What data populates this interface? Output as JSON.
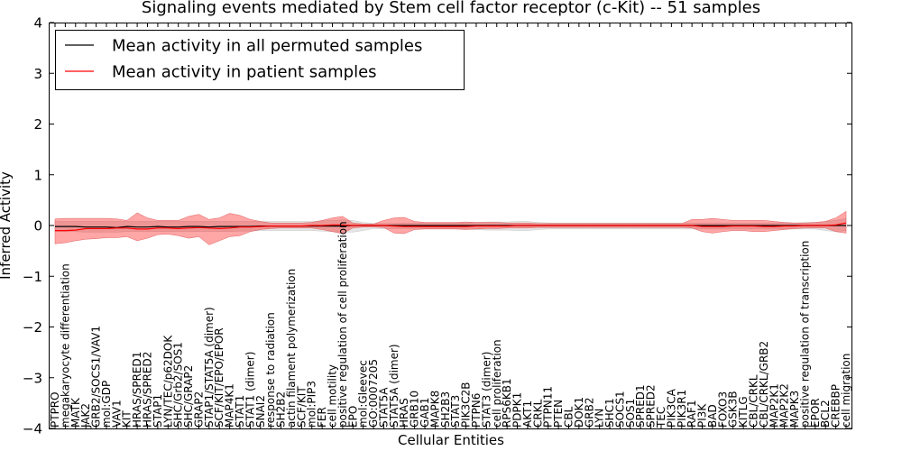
{
  "chart_data": {
    "type": "line",
    "title": "Signaling events mediated by Stem cell factor receptor (c-Kit) -- 51 samples",
    "xlabel": "Cellular Entities",
    "ylabel": "Inferred Activity",
    "ylim": [
      -4,
      4
    ],
    "yticks": [
      -4,
      -3,
      -2,
      -1,
      0,
      1,
      2,
      3,
      4
    ],
    "ytick_labels": [
      "−4",
      "−3",
      "−2",
      "−1",
      "0",
      "1",
      "2",
      "3",
      "4"
    ],
    "legend_position": "top-left",
    "categories": [
      "PTPRO",
      "megakaryocyte differentiation",
      "MATK",
      "JAK2",
      "GRB2/SOCS1/VAV1",
      "mol:GDP",
      "VAV1",
      "KIT",
      "HRAS/SPRED1",
      "HRAS/SPRED2",
      "STAP1",
      "LYN/TEC/p62DOK",
      "SHC/Grb2/SOS1",
      "SHC/GRAP2",
      "GRAP2",
      "STAP1/STAT5A (dimer)",
      "SCF/KIT/EPO/EPOR",
      "MAP4K1",
      "STAT1",
      "STAT1 (dimer)",
      "SNAI2",
      "response to radiation",
      "SH2B2",
      "actin filament polymerization",
      "SCF/KIT",
      "mol:PIP3",
      "FER",
      "cell motility",
      "positive regulation of cell proliferation",
      "EPO",
      "mol:Gleevec",
      "GO:0007205",
      "STAT5A",
      "STAT5A (dimer)",
      "HRAS",
      "GRB10",
      "GAB1",
      "MAPK8",
      "SH2B3",
      "STAT3",
      "PIK3C2B",
      "PTPN6",
      "STAT3 (dimer)",
      "cell proliferation",
      "RPS6KB1",
      "PDPK1",
      "AKT1",
      "CRKL",
      "PTPN11",
      "PTEN",
      "CBL",
      "DOK1",
      "GRB2",
      "LYN",
      "SHC1",
      "SOCS1",
      "SOS1",
      "SPRED1",
      "SPRED2",
      "TEC",
      "PIK3CA",
      "PIK3R1",
      "RAF1",
      "PI3K",
      "BAD",
      "FOXO3",
      "GSK3B",
      "KITLG",
      "CBL/CRKL",
      "CBL/CRKL/GRB2",
      "MAP2K1",
      "MAP2K2",
      "MAPK3",
      "positive regulation of transcription",
      "EPOR",
      "BCL2",
      "CREBBP",
      "cell migration"
    ],
    "series": [
      {
        "name": "Mean activity in all permuted samples",
        "color": "#000000",
        "values": [
          -0.02,
          -0.02,
          -0.02,
          -0.03,
          -0.03,
          -0.03,
          -0.04,
          -0.02,
          -0.03,
          -0.03,
          -0.02,
          -0.03,
          -0.03,
          -0.02,
          -0.02,
          -0.03,
          -0.02,
          -0.02,
          -0.02,
          -0.02,
          -0.01,
          -0.01,
          -0.01,
          -0.01,
          -0.01,
          -0.01,
          -0.01,
          -0.01,
          -0.01,
          0.0,
          0.0,
          0.0,
          0.0,
          0.0,
          0.0,
          0.0,
          0.0,
          0.0,
          0.0,
          0.0,
          0.0,
          0.0,
          0.0,
          0.0,
          0.0,
          0.0,
          0.0,
          0.0,
          0.0,
          0.0,
          0.0,
          0.0,
          0.0,
          0.0,
          0.0,
          0.0,
          0.0,
          0.0,
          0.0,
          0.0,
          0.0,
          0.0,
          0.0,
          0.0,
          0.0,
          0.0,
          0.0,
          0.0,
          0.0,
          0.0,
          0.0,
          0.0,
          0.0,
          0.0,
          0.0,
          0.0,
          0.0,
          0.0
        ],
        "band_low": [
          -0.12,
          -0.12,
          -0.12,
          -0.13,
          -0.13,
          -0.13,
          -0.13,
          -0.12,
          -0.12,
          -0.12,
          -0.12,
          -0.12,
          -0.12,
          -0.12,
          -0.12,
          -0.12,
          -0.12,
          -0.12,
          -0.11,
          -0.11,
          -0.1,
          -0.1,
          -0.1,
          -0.1,
          -0.1,
          -0.1,
          -0.11,
          -0.12,
          -0.13,
          -0.13,
          -0.1,
          -0.06,
          -0.06,
          -0.06,
          -0.06,
          -0.06,
          -0.06,
          -0.06,
          -0.06,
          -0.06,
          -0.07,
          -0.08,
          -0.09,
          -0.09,
          -0.09,
          -0.1,
          -0.1,
          -0.08,
          -0.07,
          -0.07,
          -0.07,
          -0.07,
          -0.07,
          -0.07,
          -0.07,
          -0.07,
          -0.07,
          -0.07,
          -0.07,
          -0.07,
          -0.07,
          -0.07,
          -0.07,
          -0.07,
          -0.07,
          -0.07,
          -0.07,
          -0.07,
          -0.07,
          -0.07,
          -0.07,
          -0.07,
          -0.07,
          -0.07,
          -0.07,
          -0.1,
          -0.12,
          -0.1
        ],
        "band_high": [
          0.08,
          0.08,
          0.08,
          0.08,
          0.08,
          0.08,
          0.08,
          0.08,
          0.08,
          0.08,
          0.08,
          0.08,
          0.08,
          0.08,
          0.08,
          0.08,
          0.08,
          0.08,
          0.08,
          0.08,
          0.08,
          0.08,
          0.08,
          0.08,
          0.08,
          0.08,
          0.09,
          0.1,
          0.11,
          0.1,
          0.06,
          0.04,
          0.04,
          0.04,
          0.05,
          0.05,
          0.05,
          0.05,
          0.05,
          0.05,
          0.05,
          0.06,
          0.07,
          0.07,
          0.07,
          0.08,
          0.08,
          0.06,
          0.05,
          0.05,
          0.05,
          0.05,
          0.05,
          0.05,
          0.05,
          0.05,
          0.05,
          0.05,
          0.05,
          0.05,
          0.05,
          0.05,
          0.05,
          0.05,
          0.05,
          0.05,
          0.05,
          0.05,
          0.05,
          0.05,
          0.05,
          0.05,
          0.05,
          0.06,
          0.06,
          0.08,
          0.1,
          0.14
        ]
      },
      {
        "name": "Mean activity in patient samples",
        "color": "#ff0000",
        "values": [
          -0.1,
          -0.1,
          -0.09,
          -0.06,
          -0.06,
          -0.06,
          -0.05,
          -0.05,
          -0.07,
          -0.07,
          -0.05,
          -0.05,
          -0.06,
          -0.05,
          -0.04,
          -0.05,
          -0.06,
          -0.05,
          -0.03,
          -0.03,
          -0.02,
          -0.01,
          -0.01,
          -0.01,
          -0.01,
          0.0,
          0.0,
          0.01,
          0.01,
          0.0,
          0.0,
          0.0,
          0.0,
          -0.01,
          -0.02,
          -0.02,
          -0.02,
          -0.02,
          -0.02,
          -0.02,
          -0.02,
          -0.01,
          -0.01,
          -0.01,
          -0.01,
          0.0,
          0.0,
          0.0,
          0.0,
          0.0,
          0.0,
          0.0,
          0.0,
          0.0,
          0.0,
          0.0,
          0.0,
          0.0,
          0.0,
          0.0,
          0.0,
          0.0,
          0.0,
          -0.02,
          -0.02,
          -0.02,
          -0.01,
          -0.01,
          -0.01,
          -0.02,
          -0.02,
          -0.01,
          -0.01,
          0.0,
          0.0,
          0.0,
          0.01,
          0.05
        ],
        "band_low": [
          -0.36,
          -0.34,
          -0.3,
          -0.27,
          -0.26,
          -0.24,
          -0.24,
          -0.22,
          -0.3,
          -0.25,
          -0.18,
          -0.17,
          -0.2,
          -0.25,
          -0.22,
          -0.38,
          -0.3,
          -0.22,
          -0.2,
          -0.12,
          -0.08,
          -0.06,
          -0.05,
          -0.05,
          -0.05,
          -0.05,
          -0.08,
          -0.12,
          -0.16,
          -0.05,
          -0.03,
          -0.03,
          -0.04,
          -0.15,
          -0.16,
          -0.08,
          -0.07,
          -0.07,
          -0.07,
          -0.07,
          -0.08,
          -0.07,
          -0.06,
          -0.06,
          -0.05,
          -0.05,
          -0.05,
          -0.04,
          -0.04,
          -0.04,
          -0.04,
          -0.04,
          -0.04,
          -0.04,
          -0.04,
          -0.04,
          -0.04,
          -0.04,
          -0.04,
          -0.04,
          -0.04,
          -0.04,
          -0.05,
          -0.12,
          -0.15,
          -0.12,
          -0.1,
          -0.1,
          -0.12,
          -0.12,
          -0.1,
          -0.08,
          -0.06,
          -0.05,
          -0.05,
          -0.05,
          -0.12,
          -0.15
        ],
        "band_high": [
          0.13,
          0.14,
          0.14,
          0.14,
          0.14,
          0.14,
          0.13,
          0.1,
          0.25,
          0.15,
          0.1,
          0.1,
          0.1,
          0.18,
          0.22,
          0.12,
          0.15,
          0.24,
          0.2,
          0.12,
          0.08,
          0.05,
          0.05,
          0.05,
          0.05,
          0.06,
          0.1,
          0.15,
          0.18,
          0.05,
          0.03,
          0.03,
          0.1,
          0.15,
          0.16,
          0.08,
          0.06,
          0.06,
          0.06,
          0.06,
          0.07,
          0.06,
          0.06,
          0.06,
          0.05,
          0.05,
          0.05,
          0.04,
          0.04,
          0.04,
          0.04,
          0.04,
          0.04,
          0.04,
          0.04,
          0.04,
          0.04,
          0.04,
          0.04,
          0.04,
          0.04,
          0.04,
          0.12,
          0.12,
          0.14,
          0.12,
          0.1,
          0.1,
          0.1,
          0.1,
          0.08,
          0.06,
          0.05,
          0.05,
          0.06,
          0.08,
          0.15,
          0.28
        ]
      }
    ],
    "permuted_band_color": "#d3d3d3",
    "patient_band_color": "#ff0000"
  }
}
